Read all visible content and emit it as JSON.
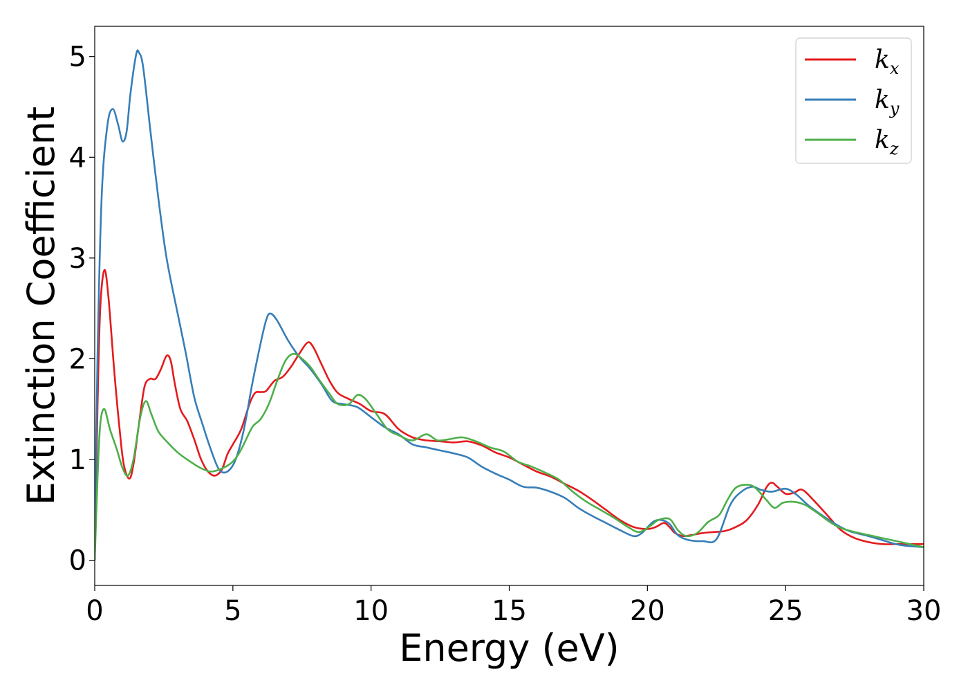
{
  "chart_data": {
    "type": "line",
    "xlabel": "Energy (eV)",
    "ylabel": "Extinction Coefficient",
    "xlim": [
      0,
      30
    ],
    "ylim": [
      -0.25,
      5.3
    ],
    "x_ticks": [
      "0",
      "5",
      "10",
      "15",
      "20",
      "25",
      "30"
    ],
    "y_ticks": [
      "0",
      "1",
      "2",
      "3",
      "4",
      "5"
    ],
    "grid": false,
    "legend_position": "top-right",
    "series": [
      {
        "name": "k_x",
        "legend_main": "k",
        "legend_sub": "x",
        "color": "#e41a1c",
        "points": [
          [
            0,
            0
          ],
          [
            0.1,
            1.5
          ],
          [
            0.2,
            2.5
          ],
          [
            0.35,
            2.88
          ],
          [
            0.5,
            2.6
          ],
          [
            0.7,
            1.9
          ],
          [
            0.9,
            1.3
          ],
          [
            1.05,
            0.95
          ],
          [
            1.25,
            0.81
          ],
          [
            1.4,
            0.95
          ],
          [
            1.6,
            1.35
          ],
          [
            1.8,
            1.72
          ],
          [
            2.0,
            1.8
          ],
          [
            2.2,
            1.8
          ],
          [
            2.4,
            1.9
          ],
          [
            2.6,
            2.03
          ],
          [
            2.75,
            1.98
          ],
          [
            2.9,
            1.75
          ],
          [
            3.1,
            1.5
          ],
          [
            3.35,
            1.38
          ],
          [
            3.6,
            1.2
          ],
          [
            3.85,
            1.0
          ],
          [
            4.1,
            0.88
          ],
          [
            4.35,
            0.84
          ],
          [
            4.6,
            0.9
          ],
          [
            4.8,
            1.05
          ],
          [
            5.0,
            1.15
          ],
          [
            5.3,
            1.3
          ],
          [
            5.6,
            1.55
          ],
          [
            5.8,
            1.66
          ],
          [
            6.0,
            1.67
          ],
          [
            6.2,
            1.68
          ],
          [
            6.5,
            1.78
          ],
          [
            6.8,
            1.82
          ],
          [
            7.1,
            1.92
          ],
          [
            7.4,
            2.05
          ],
          [
            7.7,
            2.16
          ],
          [
            7.9,
            2.12
          ],
          [
            8.2,
            1.95
          ],
          [
            8.5,
            1.78
          ],
          [
            8.8,
            1.66
          ],
          [
            9.2,
            1.6
          ],
          [
            9.6,
            1.55
          ],
          [
            10.0,
            1.48
          ],
          [
            10.5,
            1.45
          ],
          [
            11.0,
            1.3
          ],
          [
            11.5,
            1.22
          ],
          [
            12.0,
            1.19
          ],
          [
            12.5,
            1.18
          ],
          [
            13.0,
            1.17
          ],
          [
            13.5,
            1.18
          ],
          [
            14.0,
            1.14
          ],
          [
            14.5,
            1.07
          ],
          [
            15.0,
            1.02
          ],
          [
            15.5,
            0.95
          ],
          [
            16.0,
            0.88
          ],
          [
            16.5,
            0.83
          ],
          [
            17.0,
            0.76
          ],
          [
            17.5,
            0.69
          ],
          [
            18.0,
            0.6
          ],
          [
            18.5,
            0.5
          ],
          [
            19.0,
            0.4
          ],
          [
            19.5,
            0.33
          ],
          [
            20.0,
            0.31
          ],
          [
            20.3,
            0.33
          ],
          [
            20.6,
            0.37
          ],
          [
            20.8,
            0.33
          ],
          [
            21.0,
            0.27
          ],
          [
            21.3,
            0.24
          ],
          [
            21.6,
            0.25
          ],
          [
            22.0,
            0.27
          ],
          [
            22.4,
            0.28
          ],
          [
            22.8,
            0.29
          ],
          [
            23.2,
            0.33
          ],
          [
            23.6,
            0.4
          ],
          [
            24.0,
            0.55
          ],
          [
            24.3,
            0.72
          ],
          [
            24.5,
            0.77
          ],
          [
            24.7,
            0.73
          ],
          [
            25.0,
            0.66
          ],
          [
            25.3,
            0.67
          ],
          [
            25.6,
            0.7
          ],
          [
            26.0,
            0.6
          ],
          [
            26.5,
            0.45
          ],
          [
            27.0,
            0.3
          ],
          [
            27.5,
            0.22
          ],
          [
            28.0,
            0.18
          ],
          [
            28.5,
            0.16
          ],
          [
            29.0,
            0.16
          ],
          [
            29.5,
            0.16
          ],
          [
            30.0,
            0.16
          ]
        ]
      },
      {
        "name": "k_y",
        "legend_main": "k",
        "legend_sub": "y",
        "color": "#377eb8",
        "points": [
          [
            0,
            0
          ],
          [
            0.1,
            2.0
          ],
          [
            0.25,
            3.6
          ],
          [
            0.45,
            4.3
          ],
          [
            0.65,
            4.48
          ],
          [
            0.85,
            4.32
          ],
          [
            1.0,
            4.16
          ],
          [
            1.15,
            4.25
          ],
          [
            1.3,
            4.65
          ],
          [
            1.5,
            5.02
          ],
          [
            1.6,
            5.04
          ],
          [
            1.75,
            4.9
          ],
          [
            2.0,
            4.3
          ],
          [
            2.3,
            3.6
          ],
          [
            2.6,
            3.0
          ],
          [
            3.0,
            2.45
          ],
          [
            3.3,
            2.05
          ],
          [
            3.6,
            1.62
          ],
          [
            3.9,
            1.35
          ],
          [
            4.2,
            1.1
          ],
          [
            4.5,
            0.9
          ],
          [
            4.8,
            0.88
          ],
          [
            5.1,
            1.0
          ],
          [
            5.4,
            1.3
          ],
          [
            5.7,
            1.75
          ],
          [
            6.0,
            2.15
          ],
          [
            6.2,
            2.38
          ],
          [
            6.35,
            2.45
          ],
          [
            6.6,
            2.38
          ],
          [
            7.0,
            2.18
          ],
          [
            7.4,
            2.02
          ],
          [
            7.8,
            1.9
          ],
          [
            8.2,
            1.75
          ],
          [
            8.6,
            1.58
          ],
          [
            9.0,
            1.55
          ],
          [
            9.5,
            1.52
          ],
          [
            10.0,
            1.42
          ],
          [
            10.5,
            1.32
          ],
          [
            11.0,
            1.25
          ],
          [
            11.5,
            1.15
          ],
          [
            12.0,
            1.12
          ],
          [
            12.5,
            1.09
          ],
          [
            13.0,
            1.06
          ],
          [
            13.5,
            1.02
          ],
          [
            14.0,
            0.93
          ],
          [
            14.5,
            0.86
          ],
          [
            15.0,
            0.8
          ],
          [
            15.5,
            0.73
          ],
          [
            16.0,
            0.72
          ],
          [
            16.5,
            0.68
          ],
          [
            17.0,
            0.62
          ],
          [
            17.5,
            0.52
          ],
          [
            18.0,
            0.44
          ],
          [
            18.5,
            0.37
          ],
          [
            19.0,
            0.3
          ],
          [
            19.5,
            0.24
          ],
          [
            19.8,
            0.27
          ],
          [
            20.2,
            0.38
          ],
          [
            20.5,
            0.4
          ],
          [
            20.8,
            0.36
          ],
          [
            21.1,
            0.25
          ],
          [
            21.5,
            0.2
          ],
          [
            22.0,
            0.19
          ],
          [
            22.5,
            0.21
          ],
          [
            23.0,
            0.55
          ],
          [
            23.4,
            0.68
          ],
          [
            23.8,
            0.73
          ],
          [
            24.1,
            0.7
          ],
          [
            24.5,
            0.68
          ],
          [
            25.0,
            0.71
          ],
          [
            25.4,
            0.65
          ],
          [
            25.8,
            0.55
          ],
          [
            26.3,
            0.45
          ],
          [
            26.8,
            0.36
          ],
          [
            27.3,
            0.29
          ],
          [
            28.0,
            0.24
          ],
          [
            28.5,
            0.2
          ],
          [
            29.0,
            0.16
          ],
          [
            29.5,
            0.14
          ],
          [
            30.0,
            0.13
          ]
        ]
      },
      {
        "name": "k_z",
        "legend_main": "k",
        "legend_sub": "z",
        "color": "#4daf4a",
        "points": [
          [
            0,
            0
          ],
          [
            0.1,
            0.8
          ],
          [
            0.2,
            1.35
          ],
          [
            0.35,
            1.5
          ],
          [
            0.55,
            1.3
          ],
          [
            0.8,
            1.1
          ],
          [
            1.0,
            0.92
          ],
          [
            1.2,
            0.84
          ],
          [
            1.4,
            1.0
          ],
          [
            1.65,
            1.42
          ],
          [
            1.85,
            1.58
          ],
          [
            2.05,
            1.45
          ],
          [
            2.3,
            1.28
          ],
          [
            2.6,
            1.18
          ],
          [
            3.0,
            1.07
          ],
          [
            3.4,
            0.99
          ],
          [
            3.8,
            0.92
          ],
          [
            4.2,
            0.88
          ],
          [
            4.6,
            0.91
          ],
          [
            5.0,
            0.98
          ],
          [
            5.3,
            1.1
          ],
          [
            5.7,
            1.32
          ],
          [
            6.0,
            1.4
          ],
          [
            6.3,
            1.55
          ],
          [
            6.6,
            1.78
          ],
          [
            6.9,
            1.98
          ],
          [
            7.2,
            2.05
          ],
          [
            7.5,
            2.0
          ],
          [
            7.8,
            1.92
          ],
          [
            8.1,
            1.8
          ],
          [
            8.5,
            1.65
          ],
          [
            8.8,
            1.55
          ],
          [
            9.2,
            1.55
          ],
          [
            9.5,
            1.64
          ],
          [
            9.8,
            1.6
          ],
          [
            10.2,
            1.45
          ],
          [
            10.6,
            1.3
          ],
          [
            11.0,
            1.24
          ],
          [
            11.5,
            1.19
          ],
          [
            12.0,
            1.25
          ],
          [
            12.4,
            1.19
          ],
          [
            12.8,
            1.2
          ],
          [
            13.3,
            1.22
          ],
          [
            13.8,
            1.18
          ],
          [
            14.3,
            1.12
          ],
          [
            14.8,
            1.08
          ],
          [
            15.3,
            0.98
          ],
          [
            15.8,
            0.93
          ],
          [
            16.3,
            0.87
          ],
          [
            16.8,
            0.8
          ],
          [
            17.3,
            0.68
          ],
          [
            17.8,
            0.58
          ],
          [
            18.3,
            0.5
          ],
          [
            18.8,
            0.42
          ],
          [
            19.3,
            0.33
          ],
          [
            19.7,
            0.28
          ],
          [
            20.1,
            0.34
          ],
          [
            20.4,
            0.4
          ],
          [
            20.8,
            0.41
          ],
          [
            21.1,
            0.3
          ],
          [
            21.4,
            0.24
          ],
          [
            21.8,
            0.27
          ],
          [
            22.2,
            0.38
          ],
          [
            22.6,
            0.45
          ],
          [
            22.9,
            0.6
          ],
          [
            23.2,
            0.72
          ],
          [
            23.6,
            0.75
          ],
          [
            23.9,
            0.72
          ],
          [
            24.3,
            0.6
          ],
          [
            24.6,
            0.52
          ],
          [
            24.9,
            0.57
          ],
          [
            25.3,
            0.58
          ],
          [
            25.7,
            0.55
          ],
          [
            26.1,
            0.48
          ],
          [
            26.6,
            0.38
          ],
          [
            27.0,
            0.32
          ],
          [
            27.5,
            0.28
          ],
          [
            28.0,
            0.25
          ],
          [
            28.5,
            0.22
          ],
          [
            29.0,
            0.19
          ],
          [
            29.5,
            0.16
          ],
          [
            30.0,
            0.13
          ]
        ]
      }
    ]
  }
}
